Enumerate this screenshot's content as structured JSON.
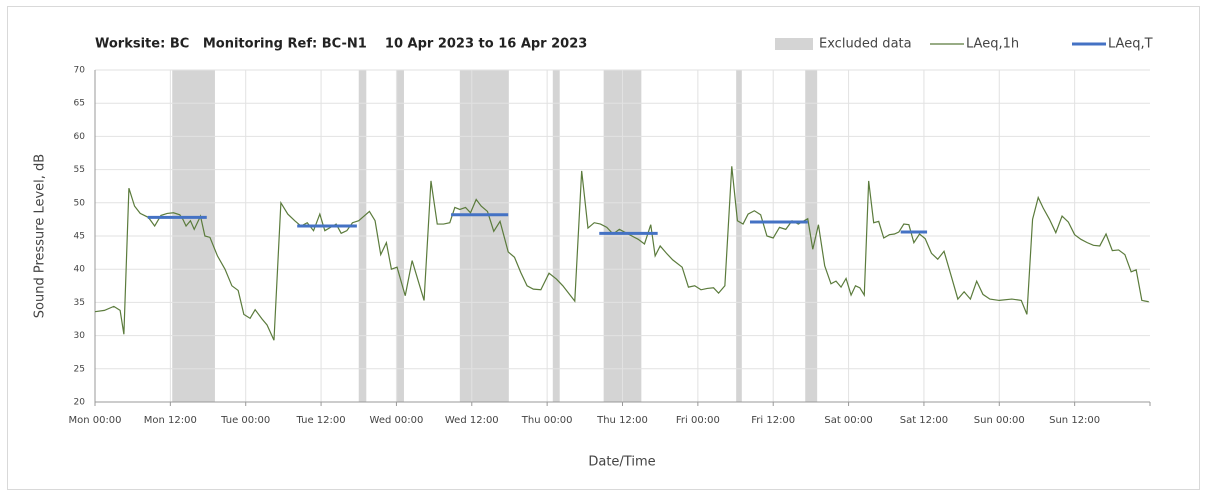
{
  "chart_data": {
    "type": "line",
    "title": "Worksite: BC   Monitoring Ref: BC-N1    10 Apr 2023 to 16 Apr 2023",
    "xlabel": "Date/Time",
    "ylabel": "Sound Pressure Level, dB",
    "xlim": [
      0,
      168
    ],
    "xticks": [
      {
        "value": 0,
        "label": "Mon 00:00"
      },
      {
        "value": 12,
        "label": "Mon 12:00"
      },
      {
        "value": 24,
        "label": "Tue 00:00"
      },
      {
        "value": 36,
        "label": "Tue 12:00"
      },
      {
        "value": 48,
        "label": "Wed 00:00"
      },
      {
        "value": 60,
        "label": "Wed 12:00"
      },
      {
        "value": 72,
        "label": "Thu 00:00"
      },
      {
        "value": 84,
        "label": "Thu 12:00"
      },
      {
        "value": 96,
        "label": "Fri 00:00"
      },
      {
        "value": 108,
        "label": "Fri 12:00"
      },
      {
        "value": 120,
        "label": "Sat 00:00"
      },
      {
        "value": 132,
        "label": "Sat 12:00"
      },
      {
        "value": 144,
        "label": "Sun 00:00"
      },
      {
        "value": 156,
        "label": "Sun 12:00"
      }
    ],
    "ylim": [
      20,
      70
    ],
    "yticks": [
      20,
      25,
      30,
      35,
      40,
      45,
      50,
      55,
      60,
      65,
      70
    ],
    "grid": true,
    "legend": "top-right",
    "excluded": {
      "name": "Excluded data",
      "color": "#d4d4d4",
      "ranges": [
        [
          12.3,
          19.1
        ],
        [
          42,
          43.2
        ],
        [
          48.1,
          49.2
        ],
        [
          58.1,
          65.9
        ],
        [
          72.9,
          74
        ],
        [
          81,
          87
        ],
        [
          102.1,
          103
        ],
        [
          113.1,
          115
        ]
      ]
    },
    "series": [
      {
        "name": "LAeq,1h",
        "color": "#5b7b3c",
        "x": [
          0,
          1.5,
          3,
          4,
          4.6,
          5.4,
          6.3,
          7.2,
          8.5,
          9.5,
          10.5,
          11.5,
          12.5,
          13.5,
          14,
          14.5,
          15.2,
          15.8,
          16.8,
          17.5,
          18.3,
          19.5,
          20.7,
          21.8,
          22.8,
          23.7,
          24.7,
          25.5,
          26.6,
          27.4,
          28.5,
          29.6,
          30.7,
          31.8,
          32.8,
          33.8,
          34.8,
          35.8,
          36.6,
          37.5,
          38.4,
          39.2,
          40.1,
          41,
          42,
          43.7,
          44.6,
          45.5,
          46.4,
          47.2,
          48.1,
          49.4,
          50.5,
          52.4,
          53.5,
          54.5,
          55.5,
          56.5,
          57.3,
          58.1,
          59,
          59.8,
          60.7,
          61.5,
          62.5,
          63.5,
          64.5,
          65.8,
          66.8,
          67.8,
          68.8,
          69.8,
          71,
          72.3,
          73.5,
          74.5,
          76.4,
          77.5,
          78.5,
          79.5,
          80.5,
          81.5,
          82.5,
          83.5,
          84.5,
          85.5,
          86.5,
          87.5,
          88.5,
          89.2,
          90,
          91,
          92,
          93.5,
          94.5,
          95.5,
          96.5,
          97.5,
          98.5,
          99.3,
          100.3,
          101.4,
          102.3,
          103.2,
          104,
          105,
          106,
          107,
          108,
          109,
          110,
          111,
          112,
          113.5,
          114.3,
          115.2,
          116.2,
          117.2,
          118,
          118.8,
          119.6,
          120.4,
          121.1,
          121.8,
          122.5,
          123.2,
          124,
          124.8,
          125.6,
          126.5,
          127.3,
          128,
          128.8,
          129.6,
          130.4,
          131.3,
          132.2,
          133.2,
          134.2,
          135.2,
          136.4,
          137.4,
          138.4,
          139.4,
          140.4,
          141.4,
          142.5,
          144,
          146,
          147.5,
          148.4,
          149.3,
          150.2,
          151,
          152,
          153,
          154,
          155,
          156,
          157,
          158,
          159,
          160,
          161,
          162,
          163,
          164,
          165,
          165.8,
          166.7,
          167.8
        ],
        "values": [
          33.6,
          33.8,
          34.4,
          33.8,
          30.2,
          52.2,
          49.5,
          48.4,
          47.8,
          46.5,
          48.1,
          48.4,
          48.5,
          48.2,
          47.5,
          46.5,
          47.3,
          46,
          48,
          45,
          44.8,
          42,
          40,
          37.5,
          36.8,
          33.2,
          32.6,
          33.9,
          32.5,
          31.6,
          29.3,
          50,
          48.3,
          47.3,
          46.5,
          47,
          45.8,
          48.3,
          45.8,
          46.3,
          46.8,
          45.4,
          45.8,
          47,
          47.3,
          48.7,
          47.3,
          42.2,
          44,
          40,
          40.3,
          36,
          41.3,
          35.3,
          53.3,
          46.8,
          46.8,
          47,
          49.3,
          49,
          49.3,
          48.5,
          50.5,
          49.5,
          48.7,
          45.7,
          47.2,
          42.6,
          41.8,
          39.5,
          37.5,
          37,
          36.9,
          39.4,
          38.5,
          37.5,
          35.2,
          54.8,
          46.2,
          47,
          46.8,
          46.3,
          45.3,
          46,
          45.5,
          45,
          44.5,
          43.8,
          46.7,
          42,
          43.5,
          42.4,
          41.4,
          40.3,
          37.3,
          37.5,
          36.9,
          37.1,
          37.2,
          36.4,
          37.5,
          55.5,
          47.3,
          46.8,
          48.3,
          48.8,
          48.2,
          45,
          44.7,
          46.3,
          46,
          47.3,
          46.8,
          47.6,
          43,
          46.7,
          40.5,
          37.8,
          38.2,
          37.3,
          38.6,
          36.1,
          37.5,
          37.2,
          36.1,
          53.3,
          47,
          47.2,
          44.7,
          45.2,
          45.3,
          45.6,
          46.8,
          46.7,
          44,
          45.3,
          44.6,
          42.4,
          41.5,
          42.7,
          38.8,
          35.5,
          36.6,
          35.5,
          38.2,
          36.2,
          35.5,
          35.3,
          35.5,
          35.3,
          33.2,
          47.5,
          50.8,
          49.2,
          47.5,
          45.5,
          48,
          47.1,
          45.2,
          44.5,
          44,
          43.6,
          43.5,
          45.3,
          42.8,
          42.9,
          42.2,
          39.6,
          39.9,
          35.3,
          35.1
        ]
      },
      {
        "name": "LAeq,T",
        "color": "#4472c4",
        "x_start": [
          8.4,
          32.2,
          56.7,
          80.3,
          104.3,
          128.3
        ],
        "x_end": [
          17.8,
          41.7,
          65.8,
          89.6,
          113.5,
          132.5
        ],
        "values": [
          47.8,
          46.5,
          48.2,
          45.4,
          47.1,
          45.6
        ]
      }
    ]
  }
}
